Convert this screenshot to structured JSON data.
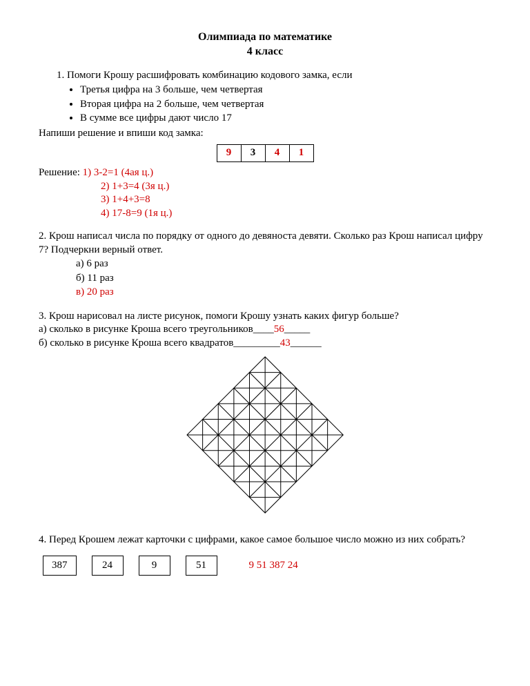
{
  "header": {
    "title": "Олимпиада   по  математике",
    "subtitle": "4 класс"
  },
  "q1": {
    "intro": "1.  Помоги Крошу расшифровать комбинацию кодового замка, если",
    "bullets": [
      "Третья цифра на 3 больше, чем четвертая",
      "Вторая цифра на 2  больше, чем четвертая",
      "В сумме все цифры дают число 17"
    ],
    "instruction": "Напиши решение и впиши код замка:",
    "code": {
      "d1": "9",
      "d2": "3",
      "d3": "4",
      "d4": "1"
    },
    "solution_label": "Решение: ",
    "solution_lines": [
      "1) 3-2=1 (4ая ц.)",
      "2) 1+3=4 (3я ц.)",
      "3) 1+4+3=8",
      "4) 17-8=9 (1я ц.)"
    ]
  },
  "q2": {
    "text": "2. Крош написал числа по порядку от одного до девяноста девяти. Сколько раз Крош написал цифру 7? Подчеркни верный ответ.",
    "options": {
      "a": "а) 6 раз",
      "b": "б) 11 раз",
      "c": "в) 20 раз"
    }
  },
  "q3": {
    "intro": "3. Крош нарисовал на листе рисунок, помоги Крошу узнать каких фигур больше?",
    "a_pre": "а) сколько в рисунке Кроша всего треугольников____",
    "a_ans": "56",
    "a_post": "_____",
    "b_pre": "б) сколько в рисунке Кроша всего квадратов_________",
    "b_ans": "43",
    "b_post": "______",
    "figure": {
      "n": 5,
      "cell": 32,
      "stroke": "#000000",
      "stroke_width": 1
    }
  },
  "q4": {
    "text": "4. Перед Крошем лежат карточки с цифрами, какое самое большое число можно из них собрать?",
    "cards": [
      "387",
      "24",
      "9",
      "51"
    ],
    "answer": "9 51 387 24"
  }
}
